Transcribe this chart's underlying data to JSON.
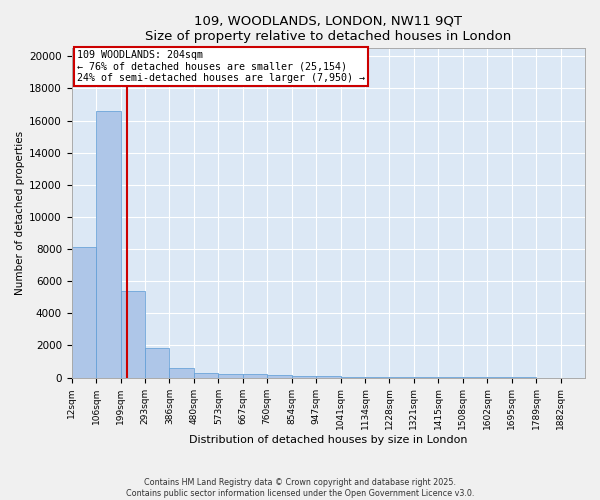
{
  "title": "109, WOODLANDS, LONDON, NW11 9QT",
  "subtitle": "Size of property relative to detached houses in London",
  "xlabel": "Distribution of detached houses by size in London",
  "ylabel": "Number of detached properties",
  "bin_labels": [
    "12sqm",
    "106sqm",
    "199sqm",
    "293sqm",
    "386sqm",
    "480sqm",
    "573sqm",
    "667sqm",
    "760sqm",
    "854sqm",
    "947sqm",
    "1041sqm",
    "1134sqm",
    "1228sqm",
    "1321sqm",
    "1415sqm",
    "1508sqm",
    "1602sqm",
    "1695sqm",
    "1789sqm",
    "1882sqm"
  ],
  "bar_heights": [
    8150,
    16600,
    5400,
    1850,
    600,
    300,
    250,
    200,
    150,
    100,
    80,
    60,
    50,
    40,
    30,
    20,
    15,
    12,
    8,
    5,
    0
  ],
  "bar_color": "#aec6e8",
  "bar_edge_color": "#5b9bd5",
  "vline_index": 2.25,
  "vline_color": "#cc0000",
  "annotation_text": "109 WOODLANDS: 204sqm\n← 76% of detached houses are smaller (25,154)\n24% of semi-detached houses are larger (7,950) →",
  "annotation_box_color": "#cc0000",
  "annotation_text_color": "#000000",
  "ylim": [
    0,
    20500
  ],
  "yticks": [
    0,
    2000,
    4000,
    6000,
    8000,
    10000,
    12000,
    14000,
    16000,
    18000,
    20000
  ],
  "background_color": "#dce8f5",
  "grid_color": "#ffffff",
  "fig_bg_color": "#f0f0f0",
  "footer_line1": "Contains HM Land Registry data © Crown copyright and database right 2025.",
  "footer_line2": "Contains public sector information licensed under the Open Government Licence v3.0."
}
